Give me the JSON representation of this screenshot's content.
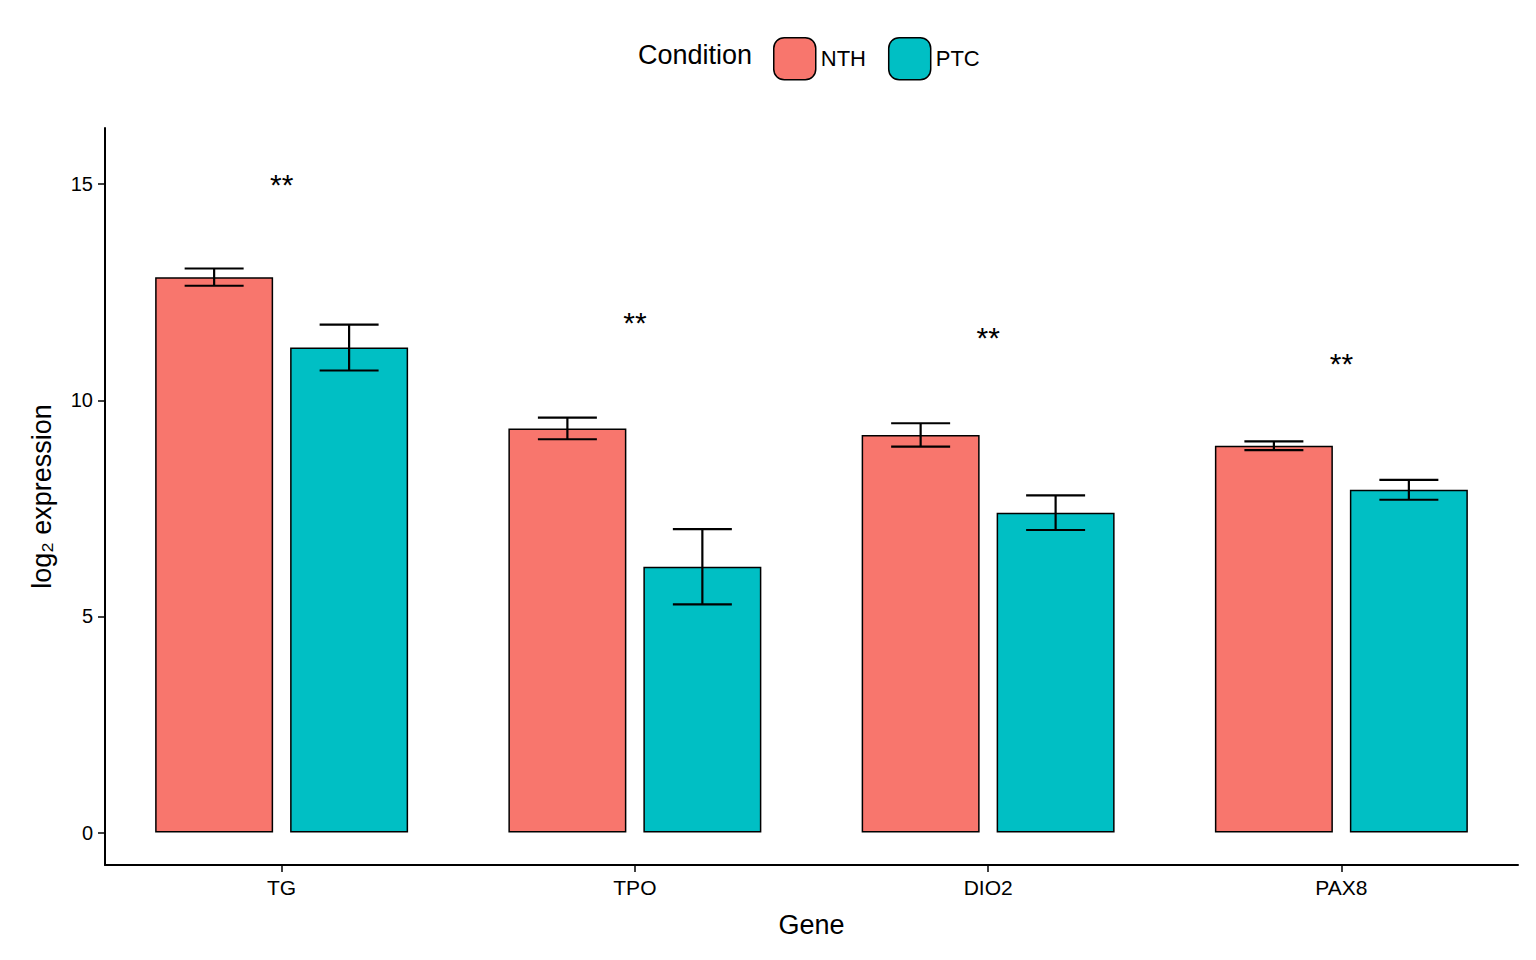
{
  "chart_data": {
    "type": "bar",
    "legend_title": "Condition",
    "x_label": "Gene",
    "y_label": "log₂ expression",
    "categories": [
      "TG",
      "TPO",
      "DIO2",
      "PAX8"
    ],
    "series": [
      {
        "name": "NTH",
        "color": "#F8766D",
        "values": [
          12.85,
          9.35,
          9.2,
          8.95
        ],
        "errors": [
          0.2,
          0.25,
          0.27,
          0.1
        ]
      },
      {
        "name": "PTC",
        "color": "#00BFC4",
        "values": [
          11.22,
          6.15,
          7.4,
          7.93
        ],
        "errors": [
          0.53,
          0.87,
          0.4,
          0.23
        ]
      }
    ],
    "annotations": [
      {
        "text": "**",
        "category": "TG",
        "y": 15.0
      },
      {
        "text": "**",
        "category": "TPO",
        "y": 11.8
      },
      {
        "text": "**",
        "category": "DIO2",
        "y": 11.45
      },
      {
        "text": "**",
        "category": "PAX8",
        "y": 10.85
      }
    ],
    "ylim": [
      -0.75,
      16.3
    ],
    "yticks": [
      0,
      5,
      10,
      15
    ],
    "grid": false,
    "legend": "top"
  }
}
